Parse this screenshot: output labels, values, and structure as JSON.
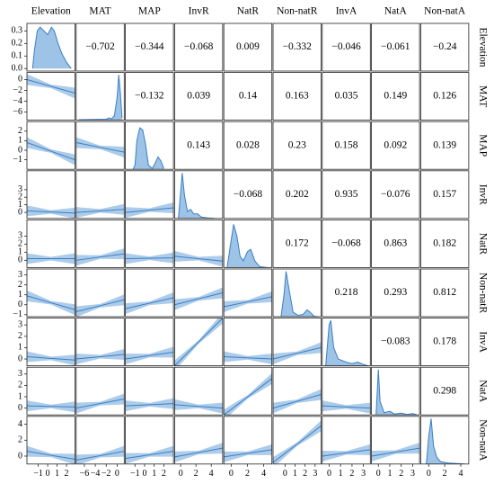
{
  "chart_data": {
    "type": "pairplot",
    "variables": [
      {
        "name": "Elevation",
        "lim": [
          -2.2,
          2.9
        ],
        "density_ylim": [
          -0.02,
          0.36
        ],
        "xticks": [
          {
            "value": -1,
            "label": "−1"
          },
          0,
          1,
          2
        ],
        "yticks": [
          {
            "value": 0,
            "label": "0.0"
          },
          0.1,
          0.2,
          0.3
        ],
        "density": {
          "x": [
            -1.6,
            -1.4,
            -1.1,
            -0.8,
            -0.4,
            0,
            0.4,
            0.7,
            1.1,
            1.5,
            2,
            2.5
          ],
          "y": [
            0,
            0.15,
            0.3,
            0.33,
            0.3,
            0.27,
            0.33,
            0.3,
            0.2,
            0.12,
            0.05,
            0
          ]
        }
      },
      {
        "name": "MAT",
        "lim": [
          -7.5,
          1.3
        ],
        "density_ylim": [
          0,
          1.05
        ],
        "xticks": [
          {
            "value": -6,
            "label": "−6"
          },
          {
            "value": -4,
            "label": "−4"
          },
          {
            "value": -2,
            "label": "−2"
          },
          0
        ],
        "yticks": [
          0,
          {
            "value": -2,
            "label": "−2"
          },
          {
            "value": -4,
            "label": "−4"
          },
          {
            "value": -6,
            "label": "−6"
          }
        ],
        "density": {
          "x": [
            -7,
            -2,
            -1.5,
            -1,
            -0.5,
            0,
            0.3,
            0.6,
            0.9
          ],
          "y": [
            0.01,
            0.02,
            0.05,
            0.03,
            0.1,
            0.5,
            1.0,
            0.6,
            0.05
          ]
        }
      },
      {
        "name": "MAP",
        "lim": [
          -2,
          3
        ],
        "density_ylim": [
          0,
          1.15
        ],
        "xticks": [
          {
            "value": -1,
            "label": "−1"
          },
          0,
          1,
          2
        ],
        "yticks": [
          2,
          1,
          0,
          {
            "value": -1,
            "label": "−1"
          }
        ],
        "density": {
          "x": [
            -1.2,
            -1,
            -0.8,
            -0.5,
            -0.2,
            0.1,
            0.4,
            0.8,
            1.1,
            1.4,
            1.7,
            2.0
          ],
          "y": [
            0,
            0.1,
            0.7,
            1.0,
            0.95,
            0.6,
            0.1,
            0.02,
            0.15,
            0.3,
            0.2,
            0.02
          ]
        }
      },
      {
        "name": "InvR",
        "lim": [
          -0.8,
          5.5
        ],
        "density_ylim": [
          0,
          1.05
        ],
        "xticks": [
          0,
          2,
          4
        ],
        "yticks": [
          3,
          2,
          1,
          0
        ],
        "density": {
          "x": [
            -0.3,
            0,
            0.2,
            0.5,
            0.9,
            1.3,
            1.7,
            2.2,
            2.7,
            3.5,
            4.5
          ],
          "y": [
            0,
            0.6,
            1.0,
            0.5,
            0.15,
            0.2,
            0.1,
            0.1,
            0.03,
            0.01,
            0
          ]
        }
      },
      {
        "name": "NatR",
        "lim": [
          -0.9,
          5
        ],
        "density_ylim": [
          0,
          1.05
        ],
        "xticks": [
          0,
          2,
          4
        ],
        "yticks": [
          3,
          2,
          1,
          0
        ],
        "density": {
          "x": [
            -0.5,
            0,
            0.3,
            0.7,
            1.1,
            1.5,
            2.0,
            2.4,
            2.9,
            3.5,
            4.5
          ],
          "y": [
            0,
            0.6,
            0.95,
            0.7,
            0.25,
            0.15,
            0.35,
            0.4,
            0.15,
            0.02,
            0
          ]
        }
      },
      {
        "name": "Non-natR",
        "lim": [
          -1.2,
          3.6
        ],
        "density_ylim": [
          0,
          1.05
        ],
        "xticks": [
          0,
          1,
          2,
          3
        ],
        "yticks": [
          3,
          2,
          1,
          0,
          {
            "value": -1,
            "label": "−1"
          }
        ],
        "density": {
          "x": [
            -0.4,
            -0.1,
            0.1,
            0.4,
            0.8,
            1.3,
            1.8,
            2.2,
            2.5,
            2.9,
            3.3
          ],
          "y": [
            0,
            0.5,
            1.0,
            0.6,
            0.1,
            0.03,
            0.05,
            0.15,
            0.1,
            0.01,
            0
          ]
        }
      },
      {
        "name": "InvA",
        "lim": [
          -0.6,
          3.6
        ],
        "density_ylim": [
          0,
          1.05
        ],
        "xticks": [
          0,
          1,
          2,
          3
        ],
        "yticks": [
          3,
          2,
          1,
          0
        ],
        "density": {
          "x": [
            -0.3,
            0,
            0.15,
            0.4,
            0.8,
            1.5,
            2.0,
            2.5,
            3.0,
            3.4
          ],
          "y": [
            0,
            0.9,
            1.0,
            0.4,
            0.15,
            0.08,
            0.05,
            0.08,
            0.03,
            0
          ]
        }
      },
      {
        "name": "NatA",
        "lim": [
          -0.6,
          3.6
        ],
        "density_ylim": [
          0,
          1.05
        ],
        "xticks": [
          0,
          1,
          2,
          3
        ],
        "yticks": [
          3,
          2,
          1,
          0
        ],
        "density": {
          "x": [
            -0.2,
            0,
            0.15,
            0.5,
            1.0,
            1.4,
            2.0,
            2.5,
            3.0,
            3.4
          ],
          "y": [
            0,
            1.0,
            0.3,
            0.05,
            0.08,
            0.02,
            0.04,
            0.01,
            0.03,
            0
          ]
        }
      },
      {
        "name": "Non-natA",
        "lim": [
          -1,
          5
        ],
        "density_ylim": [
          0,
          1.05
        ],
        "xticks": [
          0,
          2,
          4
        ],
        "yticks": [
          4,
          2,
          0
        ],
        "density": {
          "x": [
            -0.3,
            0,
            0.3,
            0.6,
            1.0,
            1.5,
            2.5,
            3.5,
            4.5
          ],
          "y": [
            0,
            0.6,
            1.0,
            0.4,
            0.15,
            0.05,
            0.02,
            0.01,
            0
          ]
        }
      }
    ],
    "correlations": [
      [
        {
          "value": -0.702,
          "label": "−0.702",
          "color": "#1f6db5"
        },
        {
          "value": -0.344,
          "label": "−0.344",
          "color": "#1f6db5"
        },
        {
          "value": -0.068,
          "label": "−0.068",
          "color": "#b0b0b0"
        },
        {
          "value": 0.009,
          "color": "#b0b0b0"
        },
        {
          "value": -0.332,
          "label": "−0.332",
          "color": "#1f6db5"
        },
        {
          "value": -0.046,
          "label": "−0.046",
          "color": "#b0b0b0"
        },
        {
          "value": -0.061,
          "label": "−0.061",
          "color": "#b0b0b0"
        },
        {
          "value": -0.24,
          "label": "−0.24",
          "color": "#1f6db5"
        }
      ],
      [
        {
          "value": -0.132,
          "label": "−0.132",
          "color": "#b0b0b0"
        },
        {
          "value": 0.039,
          "color": "#b0b0b0"
        },
        {
          "value": 0.14,
          "color": "#b0b0b0"
        },
        {
          "value": 0.163,
          "color": "#e8501e"
        },
        {
          "value": 0.035,
          "color": "#b0b0b0"
        },
        {
          "value": 0.149,
          "color": "#b0b0b0"
        },
        {
          "value": 0.126,
          "color": "#b0b0b0"
        }
      ],
      [
        {
          "value": 0.143,
          "color": "#b0b0b0"
        },
        {
          "value": 0.028,
          "color": "#b0b0b0"
        },
        {
          "value": 0.23,
          "color": "#e8501e"
        },
        {
          "value": 0.158,
          "color": "#e8501e"
        },
        {
          "value": 0.092,
          "color": "#b0b0b0"
        },
        {
          "value": 0.139,
          "color": "#b0b0b0"
        }
      ],
      [
        {
          "value": -0.068,
          "label": "−0.068",
          "color": "#b0b0b0"
        },
        {
          "value": 0.202,
          "color": "#e8501e"
        },
        {
          "value": 0.935,
          "color": "#e8501e"
        },
        {
          "value": -0.076,
          "label": "−0.076",
          "color": "#b0b0b0"
        },
        {
          "value": 0.157,
          "color": "#e8501e"
        }
      ],
      [
        {
          "value": 0.172,
          "color": "#e8501e"
        },
        {
          "value": -0.068,
          "label": "−0.068",
          "color": "#b0b0b0"
        },
        {
          "value": 0.863,
          "color": "#e8501e"
        },
        {
          "value": 0.182,
          "color": "#e8501e"
        }
      ],
      [
        {
          "value": 0.218,
          "color": "#e8501e"
        },
        {
          "value": 0.293,
          "color": "#e8501e"
        },
        {
          "value": 0.812,
          "color": "#e8501e"
        }
      ],
      [
        {
          "value": -0.083,
          "label": "−0.083",
          "color": "#b0b0b0"
        },
        {
          "value": 0.178,
          "color": "#e8501e"
        }
      ],
      [
        {
          "value": 0.298,
          "color": "#e8501e"
        }
      ],
      []
    ],
    "fits": [
      [],
      [
        [
          0.0,
          -2.5
        ]
      ],
      [
        [
          0.8,
          -1.0
        ],
        [
          0.8,
          -0.2
        ]
      ],
      [
        [
          0.2,
          -0.1
        ],
        [
          0.0,
          0.4
        ],
        [
          0.0,
          0.6
        ]
      ],
      [
        [
          0.2,
          0.2
        ],
        [
          0.0,
          0.8
        ],
        [
          0.2,
          0.3
        ],
        [
          0.5,
          -0.1
        ]
      ],
      [
        [
          0.9,
          -0.5
        ],
        [
          -0.7,
          0.5
        ],
        [
          -0.4,
          0.7
        ],
        [
          0.0,
          1.2
        ],
        [
          -0.2,
          0.8
        ]
      ],
      [
        [
          0.2,
          -0.1
        ],
        [
          0.0,
          0.4
        ],
        [
          0.0,
          0.6
        ],
        [
          -0.6,
          3.6
        ],
        [
          0.2,
          0.0
        ],
        [
          0.0,
          1.0
        ]
      ],
      [
        [
          0.2,
          0.1
        ],
        [
          0.0,
          0.8
        ],
        [
          0.2,
          0.4
        ],
        [
          0.3,
          0.0
        ],
        [
          -0.6,
          2.6
        ],
        [
          0.0,
          1.2
        ],
        [
          0.2,
          0.0
        ]
      ],
      [
        [
          0.6,
          -0.4
        ],
        [
          -0.5,
          0.6
        ],
        [
          -0.3,
          0.6
        ],
        [
          -0.1,
          1.0
        ],
        [
          -0.1,
          0.8
        ],
        [
          -0.8,
          3.8
        ],
        [
          0.0,
          0.8
        ],
        [
          0.0,
          1.0
        ]
      ]
    ],
    "fit_color": "#3a7fc4",
    "band_color": "#9dc3e6"
  }
}
